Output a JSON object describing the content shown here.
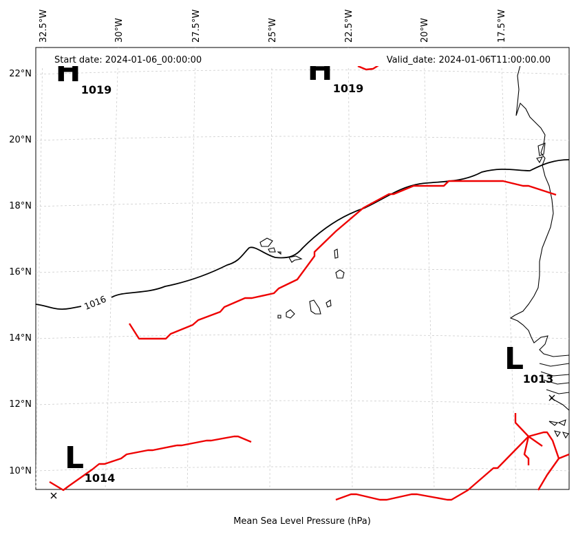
{
  "header": {
    "start_date": "Start date: 2024-01-06_00:00:00",
    "valid_date": "Valid_date: 2024-01-06T11:00:00.00"
  },
  "caption": "Mean Sea Level Pressure (hPa)",
  "longitude_ticks": [
    "32.5°W",
    "30°W",
    "27.5°W",
    "25°W",
    "22.5°W",
    "20°W",
    "17.5°W"
  ],
  "latitude_ticks": [
    "22°N",
    "20°N",
    "18°N",
    "16°N",
    "14°N",
    "12°N",
    "10°N"
  ],
  "pressure_centers": [
    {
      "letter": "H",
      "value": "1019",
      "lon": -31.3,
      "lat": 22.0
    },
    {
      "letter": "H",
      "value": "1019",
      "lon": -23.3,
      "lat": 22.0
    },
    {
      "letter": "L",
      "value": "1013",
      "lon": -16.7,
      "lat": 13.2
    },
    {
      "letter": "L",
      "value": "1014",
      "lon": -31.6,
      "lat": 10.2
    }
  ],
  "isobar_label": "1016",
  "colors": {
    "isobar": "#000000",
    "front": "#ee0000",
    "coast": "#000000",
    "grid": "#cccccc"
  }
}
